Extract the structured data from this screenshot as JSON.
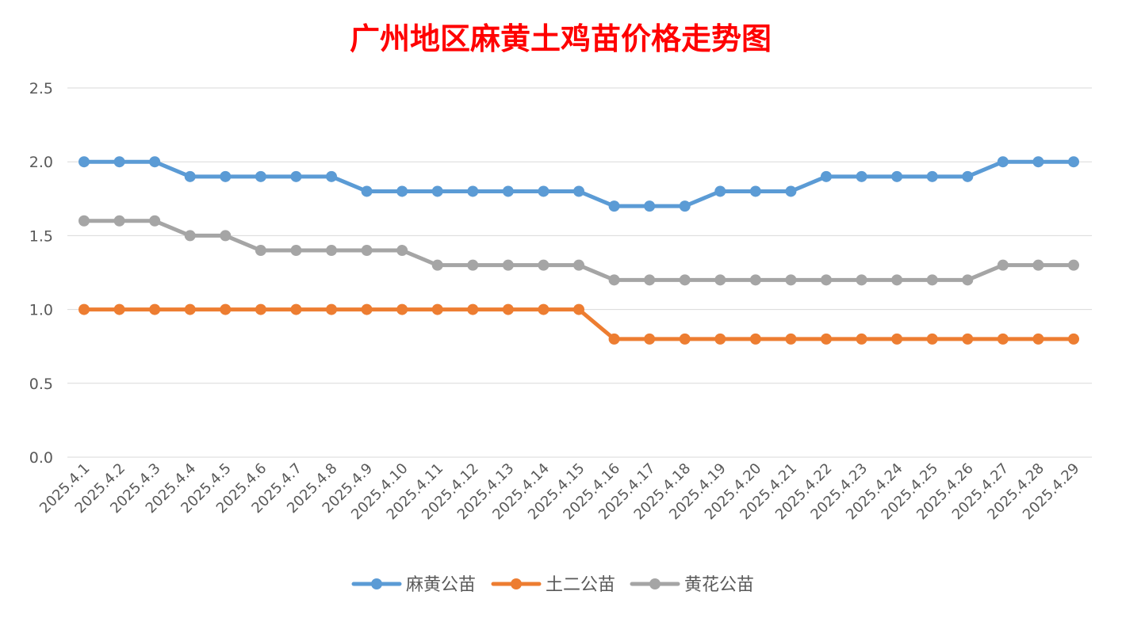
{
  "chart_data": {
    "type": "line",
    "title": "广州地区麻黄土鸡苗价格走势图",
    "xlabel": "",
    "ylabel": "",
    "ylim": [
      0,
      2.5
    ],
    "yticks": [
      "0.0",
      "0.5",
      "1.0",
      "1.5",
      "2.0",
      "2.5"
    ],
    "grid": true,
    "legend_position": "bottom",
    "categories": [
      "2025.4.1",
      "2025.4.2",
      "2025.4.3",
      "2025.4.4",
      "2025.4.5",
      "2025.4.6",
      "2025.4.7",
      "2025.4.8",
      "2025.4.9",
      "2025.4.10",
      "2025.4.11",
      "2025.4.12",
      "2025.4.13",
      "2025.4.14",
      "2025.4.15",
      "2025.4.16",
      "2025.4.17",
      "2025.4.18",
      "2025.4.19",
      "2025.4.20",
      "2025.4.21",
      "2025.4.22",
      "2025.4.23",
      "2025.4.24",
      "2025.4.25",
      "2025.4.26",
      "2025.4.27",
      "2025.4.28",
      "2025.4.29"
    ],
    "series": [
      {
        "name": "麻黄公苗",
        "color": "#5b9bd5",
        "values": [
          2.0,
          2.0,
          2.0,
          1.9,
          1.9,
          1.9,
          1.9,
          1.9,
          1.8,
          1.8,
          1.8,
          1.8,
          1.8,
          1.8,
          1.8,
          1.7,
          1.7,
          1.7,
          1.8,
          1.8,
          1.8,
          1.9,
          1.9,
          1.9,
          1.9,
          1.9,
          2.0,
          2.0,
          2.0
        ]
      },
      {
        "name": "土二公苗",
        "color": "#ed7d31",
        "values": [
          1.0,
          1.0,
          1.0,
          1.0,
          1.0,
          1.0,
          1.0,
          1.0,
          1.0,
          1.0,
          1.0,
          1.0,
          1.0,
          1.0,
          1.0,
          0.8,
          0.8,
          0.8,
          0.8,
          0.8,
          0.8,
          0.8,
          0.8,
          0.8,
          0.8,
          0.8,
          0.8,
          0.8,
          0.8
        ]
      },
      {
        "name": "黄花公苗",
        "color": "#a5a5a5",
        "values": [
          1.6,
          1.6,
          1.6,
          1.5,
          1.5,
          1.4,
          1.4,
          1.4,
          1.4,
          1.4,
          1.3,
          1.3,
          1.3,
          1.3,
          1.3,
          1.2,
          1.2,
          1.2,
          1.2,
          1.2,
          1.2,
          1.2,
          1.2,
          1.2,
          1.2,
          1.2,
          1.3,
          1.3,
          1.3
        ]
      }
    ]
  }
}
